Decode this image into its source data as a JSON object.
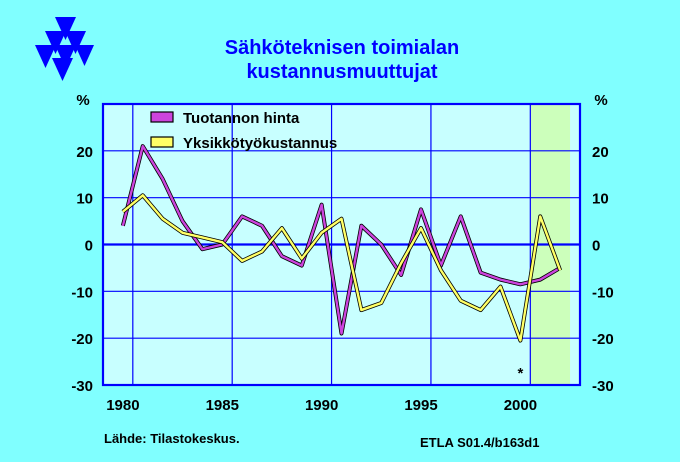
{
  "title_lines": [
    "Sähköteknisen  toimialan",
    "kustannusmuuttujat"
  ],
  "unit_left": "%",
  "unit_right": "%",
  "source": "Lähde:   Tilastokeskus.",
  "code": "ETLA S01.4/b163d1",
  "forecast_marker": "*",
  "colors": {
    "background": "#80FFFF",
    "plot_area": "#C8FFFF",
    "forecast_shade": "#CCFFBB",
    "grid": "#0000FF",
    "series_1": "#CC44DD",
    "series_2": "#FFFF66"
  },
  "chart_data": {
    "type": "line",
    "xlim": [
      1979,
      2003
    ],
    "ylim": [
      -30,
      30
    ],
    "x_ticks": [
      1980,
      1985,
      1990,
      1995,
      2000
    ],
    "y_ticks": [
      20,
      10,
      0,
      -10,
      -20,
      -30
    ],
    "grid": true,
    "legend_position": "top-left",
    "forecast_region": [
      2000.5,
      2002.5
    ],
    "x": [
      1980,
      1981,
      1982,
      1983,
      1984,
      1985,
      1986,
      1987,
      1988,
      1989,
      1990,
      1991,
      1992,
      1993,
      1994,
      1995,
      1996,
      1997,
      1998,
      1999,
      2000,
      2001,
      2002
    ],
    "series": [
      {
        "name": "Tuotannon hinta",
        "values": [
          4,
          21,
          14,
          5,
          -1,
          0,
          6,
          4,
          -2.5,
          -4.5,
          8.5,
          -19,
          4,
          0,
          -6.5,
          7.5,
          -4.5,
          6,
          -6,
          -7.5,
          -8.5,
          -7.5,
          -5
        ]
      },
      {
        "name": "Yksikkötyökustannus",
        "values": [
          7,
          10.5,
          5.5,
          2.5,
          1.5,
          0.5,
          -3.5,
          -1.5,
          3.5,
          -3,
          2.5,
          5.5,
          -14,
          -12.5,
          -4,
          3.5,
          -5.5,
          -12,
          -14,
          -9,
          -20.5,
          6,
          -5.5
        ]
      }
    ]
  }
}
